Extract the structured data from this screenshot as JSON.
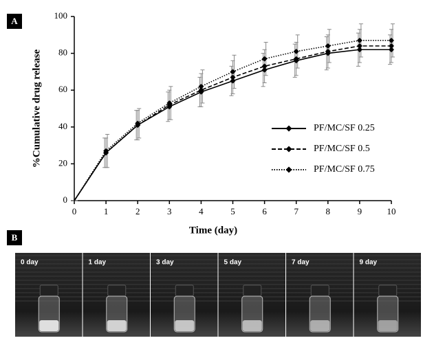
{
  "panel_labels": [
    "A",
    "B"
  ],
  "chart_data": {
    "type": "line",
    "xlabel": "Time (day)",
    "ylabel": "%Cumulative drug release",
    "x": [
      0,
      1,
      2,
      3,
      4,
      5,
      6,
      7,
      8,
      9,
      10
    ],
    "series": [
      {
        "name": "PF/MC/SF 0.25",
        "color": "#000000",
        "linestyle": "solid",
        "values": [
          0,
          26,
          41,
          51,
          59,
          65,
          71,
          76,
          80,
          82,
          82
        ],
        "errors": [
          0,
          8,
          8,
          8,
          8,
          8,
          9,
          9,
          9,
          9,
          8
        ]
      },
      {
        "name": "PF/MC/SF 0.5",
        "color": "#000000",
        "linestyle": "dashed",
        "values": [
          0,
          26,
          41,
          52,
          60,
          67,
          73,
          77,
          81,
          84,
          84
        ],
        "errors": [
          0,
          8,
          8,
          8,
          9,
          9,
          9,
          9,
          9,
          9,
          9
        ]
      },
      {
        "name": "PF/MC/SF 0.75",
        "color": "#000000",
        "linestyle": "dotted",
        "values": [
          0,
          27,
          42,
          53,
          62,
          70,
          77,
          81,
          84,
          87,
          87
        ],
        "errors": [
          0,
          9,
          8,
          9,
          9,
          9,
          9,
          9,
          9,
          9,
          9
        ]
      }
    ],
    "xlim": [
      0,
      10
    ],
    "ylim": [
      0,
      100
    ],
    "xticks": [
      0,
      1,
      2,
      3,
      4,
      5,
      6,
      7,
      8,
      9,
      10
    ],
    "yticks": [
      0,
      20,
      40,
      60,
      80,
      100
    ],
    "legend": "lower right",
    "grid": false
  },
  "photo_labels": [
    "0 day",
    "1 day",
    "3 day",
    "5 day",
    "7 day",
    "9 day"
  ]
}
